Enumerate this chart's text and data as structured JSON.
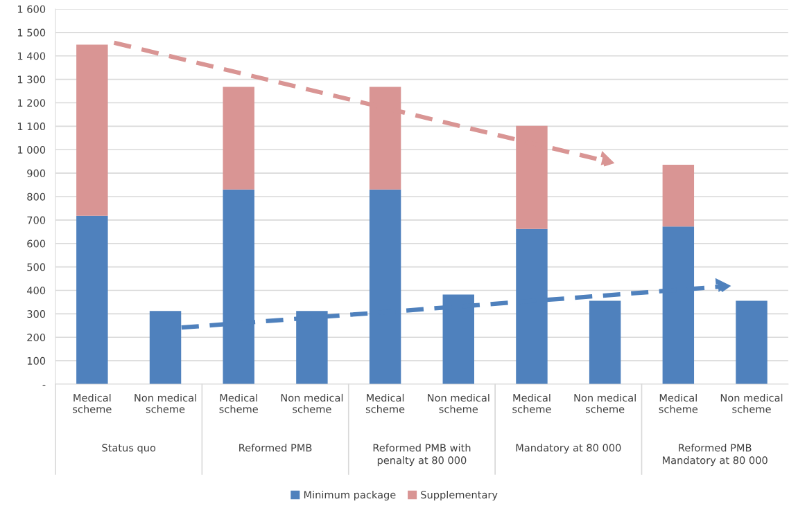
{
  "chart_data": {
    "type": "bar",
    "stacked": true,
    "categories": [
      "Medical\nscheme",
      "Non medical\nscheme",
      "Medical\nscheme",
      "Non medical\nscheme",
      "Medical\nscheme",
      "Non medical\nscheme",
      "Medical\nscheme",
      "Non medical\nscheme",
      "Medical\nscheme",
      "Non medical\nscheme"
    ],
    "series": [
      {
        "name": "Minimum package",
        "color": "#4f81bd",
        "values": [
          718,
          312,
          830,
          312,
          830,
          382,
          662,
          356,
          672,
          356
        ]
      },
      {
        "name": "Supplementary",
        "color": "#d99594",
        "values": [
          730,
          null,
          438,
          null,
          438,
          null,
          440,
          null,
          264,
          null
        ]
      }
    ],
    "annotations": [
      "Status quo",
      "Reformed PMB",
      "Reformed PMB with\npenalty at 80 000",
      "Mandatory at 80 000",
      "Reformed PMB\nMandatory at 80 000"
    ],
    "ylim": [
      0,
      1600
    ],
    "yticks": [
      {
        "value": 0,
        "label": "-"
      },
      100,
      200,
      300,
      400,
      500,
      600,
      700,
      800,
      900,
      {
        "value": 1000,
        "label": "1 000"
      },
      {
        "value": 1100,
        "label": "1 100"
      },
      {
        "value": 1200,
        "label": "1 200"
      },
      {
        "value": 1300,
        "label": "1 300"
      },
      {
        "value": 1400,
        "label": "1 400"
      },
      {
        "value": 1500,
        "label": "1 500"
      },
      {
        "value": 1600,
        "label": "1 600"
      }
    ],
    "grid": "y",
    "legend": "bottom"
  }
}
